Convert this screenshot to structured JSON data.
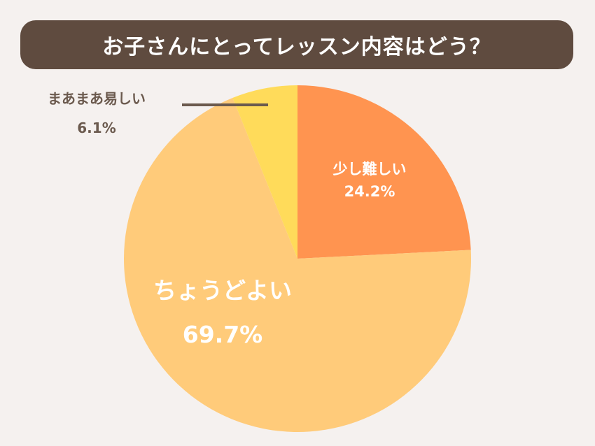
{
  "header": {
    "title": "お子さんにとってレッスン内容はどう？"
  },
  "colors": {
    "background": "#f5f1ef",
    "title_bar": "#5f4b3f",
    "leader_line": "#6b5a4e",
    "label_dark": "#6b5a4e",
    "label_light": "#ffffff"
  },
  "chart_data": {
    "type": "pie",
    "start_angle_deg": 0,
    "direction": "clockwise",
    "slices": [
      {
        "label": "少し難しい",
        "value_label": "24.2%",
        "value": 24.2,
        "color": "#ff9450",
        "label_style": "inside-light"
      },
      {
        "label": "ちょうどよい",
        "value_label": "69.7%",
        "value": 69.7,
        "color": "#ffcb7a",
        "label_style": "inside-light-large"
      },
      {
        "label": "まあまあ易しい",
        "value_label": "6.1%",
        "value": 6.1,
        "color": "#ffdb5a",
        "label_style": "outside-leader"
      }
    ]
  }
}
